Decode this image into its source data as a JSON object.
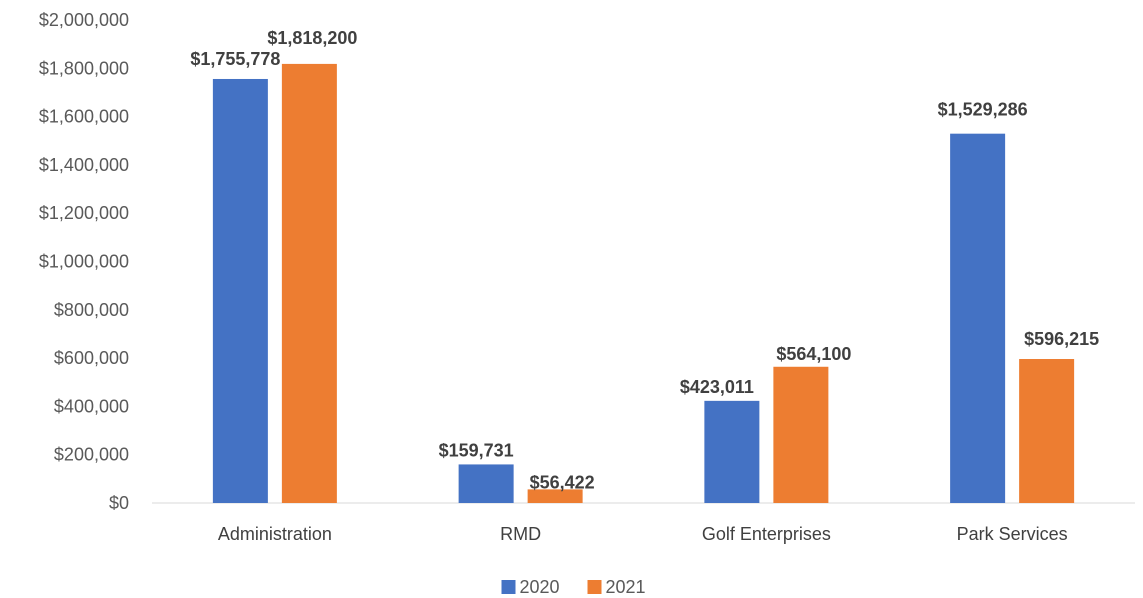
{
  "chart_data": {
    "type": "bar",
    "categories": [
      "Administration",
      "RMD",
      "Golf Enterprises",
      "Park Services"
    ],
    "series": [
      {
        "name": "2020",
        "color": "#4472C4",
        "values": [
          1755778,
          159731,
          423011,
          1529286
        ],
        "labels": [
          "$1,755,778",
          "$159,731",
          "$423,011",
          "$1,529,286"
        ]
      },
      {
        "name": "2021",
        "color": "#ED7D31",
        "values": [
          1818200,
          56422,
          564100,
          596215
        ],
        "labels": [
          "$1,818,200",
          "$56,422",
          "$564,100",
          "$596,215"
        ]
      }
    ],
    "ylim": [
      0,
      2000000
    ],
    "yticks": [
      0,
      200000,
      400000,
      600000,
      800000,
      1000000,
      1200000,
      1400000,
      1600000,
      1800000,
      2000000
    ],
    "ytick_labels": [
      "$0",
      "$200,000",
      "$400,000",
      "$600,000",
      "$800,000",
      "$1,000,000",
      "$1,200,000",
      "$1,400,000",
      "$1,600,000",
      "$1,800,000",
      "$2,000,000"
    ],
    "grid": false,
    "legend": "bottom",
    "title": "",
    "xlabel": "",
    "ylabel": ""
  }
}
